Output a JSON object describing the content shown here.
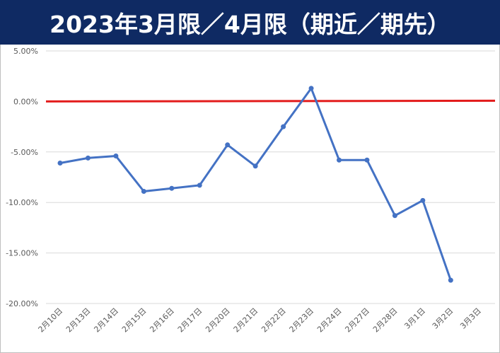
{
  "header": {
    "title": "2023年3月限／4月限（期近／期先）"
  },
  "colors": {
    "title_bg": "#0f2a63",
    "series_line": "#4472c4",
    "zero_line": "#e31c1c",
    "grid": "#d9d9d9"
  },
  "chart_data": {
    "type": "line",
    "title": "",
    "xlabel": "",
    "ylabel": "",
    "ylim": [
      -20,
      5
    ],
    "yticks": [
      5,
      0,
      -5,
      -10,
      -15,
      -20
    ],
    "ytick_labels": [
      "5.00%",
      "0.00%",
      "-5.00%",
      "-10.00%",
      "-15.00%",
      "-20.00%"
    ],
    "grid": true,
    "categories": [
      "2月10日",
      "2月13日",
      "2月14日",
      "2月15日",
      "2月16日",
      "2月17日",
      "2月20日",
      "2月21日",
      "2月22日",
      "2月23日",
      "2月24日",
      "2月27日",
      "2月28日",
      "3月1日",
      "3月2日",
      "3月3日"
    ],
    "series": [
      {
        "values": [
          -6.1,
          -5.6,
          -5.4,
          -8.9,
          -8.6,
          -8.3,
          -4.3,
          -6.4,
          -2.5,
          1.3,
          -5.8,
          -5.8,
          -11.3,
          -9.8,
          -17.7,
          null
        ]
      }
    ],
    "reference_line": {
      "y": 0,
      "color": "#e31c1c"
    }
  }
}
